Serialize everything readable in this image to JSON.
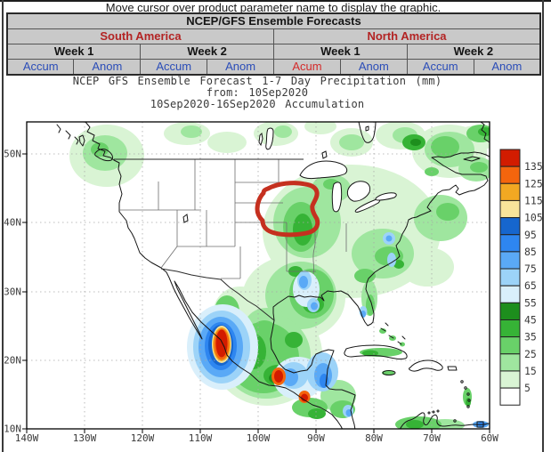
{
  "page": {
    "instruction": "Move cursor over product parameter name to display the graphic."
  },
  "nav": {
    "title": "NCEP/GFS Ensemble Forecasts",
    "regions": [
      {
        "label": "South America"
      },
      {
        "label": "North America"
      }
    ],
    "weeks": [
      "Week 1",
      "Week 2",
      "Week 1",
      "Week 2"
    ],
    "links": [
      {
        "id": "sa-week1-accum",
        "label": "Accum",
        "active": false
      },
      {
        "id": "sa-week1-anom",
        "label": "Anom",
        "active": false
      },
      {
        "id": "sa-week2-accum",
        "label": "Accum",
        "active": false
      },
      {
        "id": "sa-week2-anom",
        "label": "Anom",
        "active": false
      },
      {
        "id": "na-week1-accum",
        "label": "Acum",
        "active": true
      },
      {
        "id": "na-week1-anom",
        "label": "Anom",
        "active": false
      },
      {
        "id": "na-week2-accum",
        "label": "Accum",
        "active": false
      },
      {
        "id": "na-week2-anom",
        "label": "Anom",
        "active": false
      }
    ]
  },
  "graphic": {
    "title": "NCEP GFS Ensemble Forecast 1-7 Day Precipitation (mm)",
    "from_line": "from: 10Sep2020",
    "period_line": "10Sep2020-16Sep2020 Accumulation"
  },
  "colors": {
    "link_blue": "#2b4db8",
    "active_link_red": "#d42a2a",
    "region_header_red": "#b32424",
    "table_cell_bg": "#c9c9c9",
    "annotation_red": "#c5301f"
  },
  "chart_data": {
    "type": "heatmap",
    "subtype": "filled-contour precipitation map",
    "title": "NCEP GFS Ensemble Forecast 1-7 Day Precipitation (mm)",
    "init_date": "10Sep2020",
    "valid_period": "10Sep2020-16Sep2020",
    "quantity": "7-day accumulated precipitation",
    "units": "mm",
    "region": "North America",
    "x_ticks": [
      "140W",
      "130W",
      "120W",
      "110W",
      "100W",
      "90W",
      "80W",
      "70W",
      "60W"
    ],
    "y_ticks": [
      "50N",
      "40N",
      "30N",
      "20N",
      "10N"
    ],
    "grid": true,
    "legend_position": "right",
    "legend_levels": [
      5,
      15,
      25,
      35,
      45,
      55,
      65,
      75,
      85,
      95,
      105,
      115,
      125,
      135
    ],
    "legend_colors_top_to_bottom": [
      "#D21C00",
      "#F4650D",
      "#F2A822",
      "#F8E49A",
      "#1666CE",
      "#2E86F0",
      "#5AA9F6",
      "#9CD3F8",
      "#D9EFFB",
      "#1D8E1D",
      "#36B336",
      "#69D169",
      "#9FE69F",
      "#D9F4D4",
      "#FFFFFF"
    ],
    "annotations": [
      {
        "type": "hand-drawn red circle",
        "color": "#c5301f",
        "region": "Nebraska / Iowa / northern Missouri (approx 89W-100W, 38N-45N)"
      }
    ],
    "notable_values": [
      {
        "location": "NW Mexico Pacific coast (~107W, 22-26N)",
        "value_mm": ">135"
      },
      {
        "location": "Southern Mexico / Guatemala (~92-97W, 14-18N)",
        "value_mm": "85-135"
      },
      {
        "location": "Yucatan / Belize (~88-91W, 16-21N)",
        "value_mm": "55-95"
      },
      {
        "location": "Lower Mississippi valley / Gulf coast (~90-93W, 29-35N)",
        "value_mm": "45-85"
      },
      {
        "location": "Iowa / Missouri inside red circle (~92-95W, 38-43N)",
        "value_mm": "15-45"
      },
      {
        "location": "Appalachians and Northeast US",
        "value_mm": "15-45"
      },
      {
        "location": "Quebec / eastern Canada",
        "value_mm": "15-55"
      },
      {
        "location": "Pacific Northwest coast",
        "value_mm": "5-35"
      },
      {
        "location": "Florida peninsula",
        "value_mm": "15-75"
      },
      {
        "location": "Interior West / northern Plains / west Texas",
        "value_mm": "<5"
      }
    ]
  }
}
